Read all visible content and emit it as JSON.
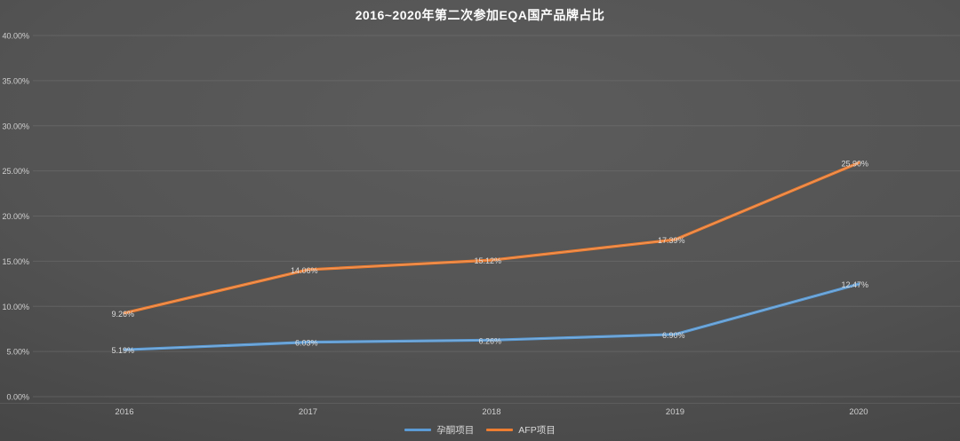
{
  "title": "2016~2020年第二次参加EQA国产品牌占比",
  "colors": {
    "background_center": "#5C5C5C",
    "background_edge": "#242424",
    "grid": "#787878",
    "axis_text": "#D0D0D0",
    "data_label_text": "#DCDCDC",
    "title_text": "#FFFFFF",
    "series_blue": "#5B9BD5",
    "series_orange": "#ED7D31"
  },
  "chart_data": {
    "type": "line",
    "title": "2016~2020年第二次参加EQA国产品牌占比",
    "categories": [
      "2016",
      "2017",
      "2018",
      "2019",
      "2020"
    ],
    "series": [
      {
        "name": "孕酮项目",
        "color": "#5B9BD5",
        "values": [
          5.19,
          6.03,
          6.26,
          6.9,
          12.47
        ],
        "labels": [
          "5.19%",
          "6.03%",
          "6.26%",
          "6.90%",
          "12.47%"
        ]
      },
      {
        "name": "AFP项目",
        "color": "#ED7D31",
        "values": [
          9.26,
          14.06,
          15.12,
          17.39,
          25.9
        ],
        "labels": [
          "9.26%",
          "14.06%",
          "15.12%",
          "17.39%",
          "25.90%"
        ]
      }
    ],
    "xlabel": "",
    "ylabel": "",
    "ylim": [
      0,
      40
    ],
    "ytick_step": 5,
    "ytick_labels": [
      "0.00%",
      "5.00%",
      "10.00%",
      "15.00%",
      "20.00%",
      "25.00%",
      "30.00%",
      "35.00%",
      "40.00%"
    ],
    "grid": true,
    "legend_position": "bottom"
  }
}
